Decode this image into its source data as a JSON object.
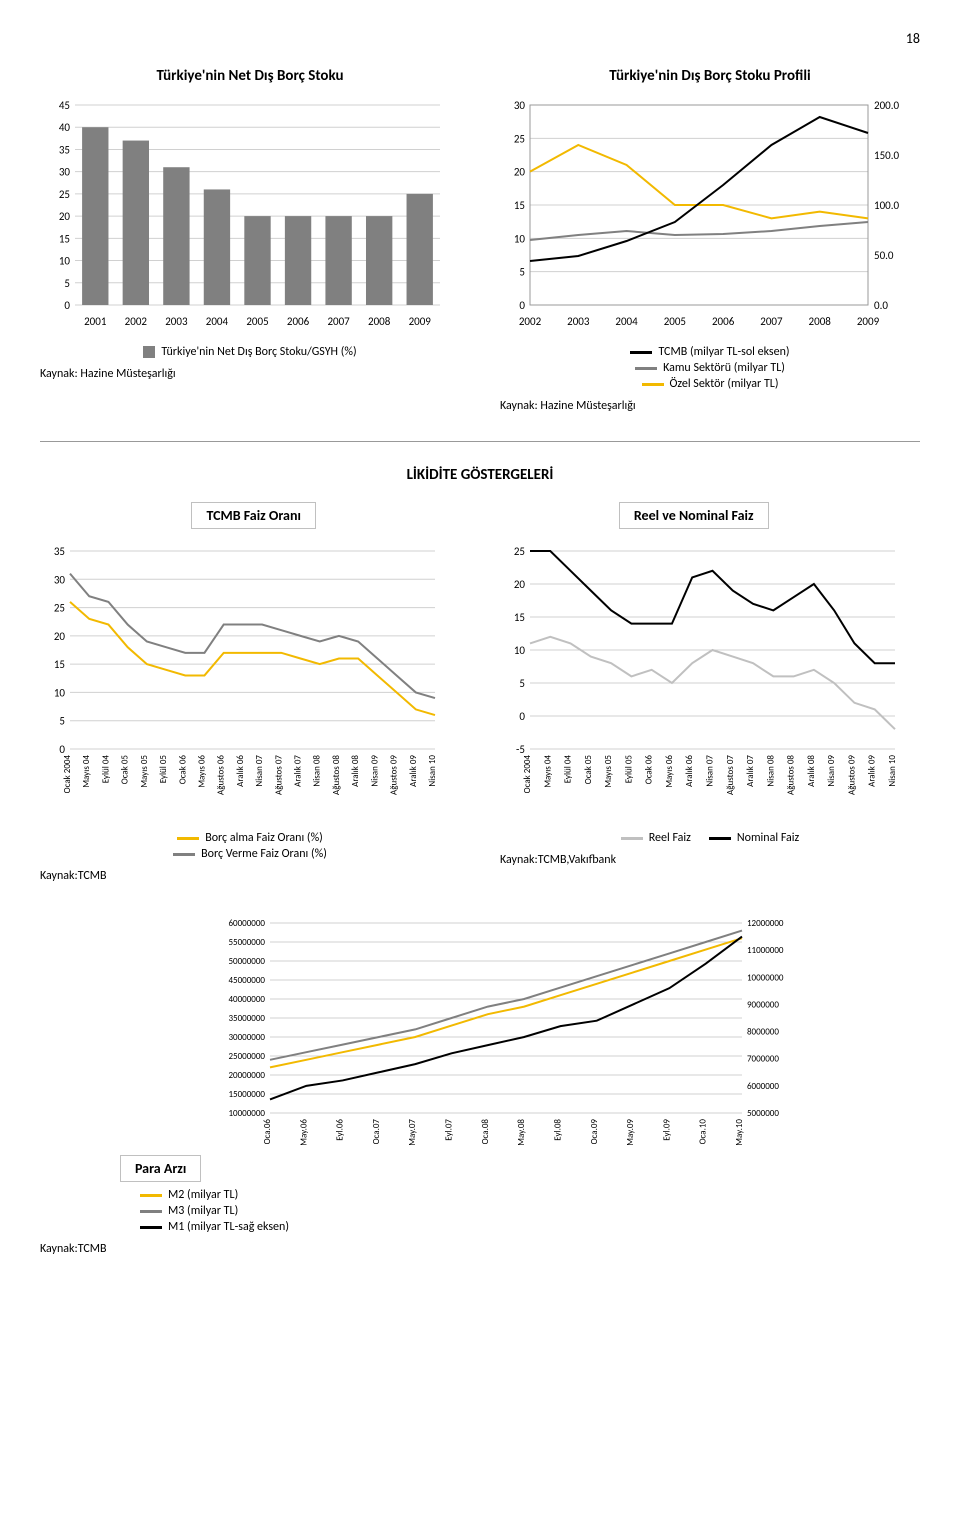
{
  "page_number": "18",
  "charts": {
    "left_top": {
      "type": "bar",
      "title": "Türkiye'nin Net Dış Borç Stoku",
      "categories": [
        "2001",
        "2002",
        "2003",
        "2004",
        "2005",
        "2006",
        "2007",
        "2008",
        "2009"
      ],
      "values": [
        40,
        37,
        31,
        26,
        20,
        20,
        20,
        20,
        25
      ],
      "ylim": [
        0,
        45
      ],
      "ytick_step": 5,
      "bar_color": "#808080",
      "grid_color": "#d0d0d0",
      "legend_label": "Türkiye'nin Net Dış Borç Stoku/GSYH (%)",
      "source": "Kaynak: Hazine Müsteşarlığı",
      "label_fontsize": 11
    },
    "right_top": {
      "type": "line-dual-axis",
      "title": "Türkiye'nin Dış Borç Stoku Profili",
      "categories": [
        "2002",
        "2003",
        "2004",
        "2005",
        "2006",
        "2007",
        "2008",
        "2009"
      ],
      "series": [
        {
          "name": "TCMB (milyar TL-sol eksen)",
          "axis": "left",
          "color": "#f2b900",
          "values": [
            20,
            24,
            21,
            15,
            15,
            13,
            14,
            13
          ]
        },
        {
          "name": "Kamu Sektörü (milyar TL)",
          "axis": "right",
          "color": "#808080",
          "values": [
            65,
            70,
            74,
            70,
            71,
            74,
            79,
            83
          ]
        },
        {
          "name": "Özel Sektör (milyar TL)",
          "axis": "right",
          "color": "#000000",
          "values": [
            44,
            49,
            64,
            83,
            120,
            160,
            188,
            172
          ]
        }
      ],
      "ylim_left": [
        0,
        30
      ],
      "ytick_left": 5,
      "ylim_right": [
        0,
        200
      ],
      "ytick_right": 50,
      "right_labels": [
        "0.0",
        "50.0",
        "100.0",
        "150.0",
        "200.0"
      ],
      "grid_color": "#d0d0d0",
      "source": "Kaynak: Hazine Müsteşarlığı",
      "label_fontsize": 11
    },
    "section_header": "LİKİDİTE GÖSTERGELERİ",
    "tcmb_faiz": {
      "type": "line",
      "title": "TCMB Faiz Oranı",
      "x_labels": [
        "Ocak 2004",
        "Mayıs 04",
        "Eylül 04",
        "Ocak 05",
        "Mayıs 05",
        "Eylül 05",
        "Ocak 06",
        "Mayıs 06",
        "Ağustos 06",
        "Aralık 06",
        "Nisan 07",
        "Ağustos 07",
        "Aralık 07",
        "Nisan 08",
        "Ağustos 08",
        "Aralık 08",
        "Nisan 09",
        "Ağustos 09",
        "Aralık 09",
        "Nisan 10"
      ],
      "series": [
        {
          "name": "Borç alma Faiz Oranı (%)",
          "color": "#f2b900",
          "values": [
            26,
            23,
            22,
            18,
            15,
            14,
            13,
            13,
            17,
            17,
            17,
            17,
            16,
            15,
            16,
            16,
            13,
            10,
            7,
            6
          ]
        },
        {
          "name": "Borç Verme Faiz Oranı (%)",
          "color": "#808080",
          "values": [
            31,
            27,
            26,
            22,
            19,
            18,
            17,
            17,
            22,
            22,
            22,
            21,
            20,
            19,
            20,
            19,
            16,
            13,
            10,
            9
          ]
        }
      ],
      "ylim": [
        0,
        35
      ],
      "ytick_step": 5,
      "grid_color": "#d0d0d0",
      "source": "Kaynak:TCMB",
      "label_fontsize": 9
    },
    "reel_nominal": {
      "type": "line",
      "title": "Reel ve Nominal Faiz",
      "x_labels": [
        "Ocak 2004",
        "Mayıs 04",
        "Eylül 04",
        "Ocak 05",
        "Mayıs 05",
        "Eylül 05",
        "Ocak 06",
        "Mayıs 06",
        "Aralık 06",
        "Nisan 07",
        "Ağustos 07",
        "Aralık 07",
        "Nisan 08",
        "Ağustos 08",
        "Aralık 08",
        "Nisan 09",
        "Ağustos 09",
        "Aralık 09",
        "Nisan 10"
      ],
      "series": [
        {
          "name": "Reel Faiz",
          "color": "#c0c0c0",
          "values": [
            11,
            12,
            11,
            9,
            8,
            6,
            7,
            5,
            8,
            10,
            9,
            8,
            6,
            6,
            7,
            5,
            2,
            1,
            -2
          ]
        },
        {
          "name": "Nominal Faiz",
          "color": "#000000",
          "values": [
            25,
            25,
            22,
            19,
            16,
            14,
            14,
            14,
            21,
            22,
            19,
            17,
            16,
            18,
            20,
            16,
            11,
            8,
            8
          ]
        }
      ],
      "ylim": [
        -5,
        25
      ],
      "ytick_step": 5,
      "grid_color": "#d0d0d0",
      "source": "Kaynak:TCMB,Vakıfbank",
      "label_fontsize": 9
    },
    "para_arzi": {
      "type": "line-dual-axis",
      "title": "Para Arzı",
      "x_labels": [
        "Oca.06",
        "May.06",
        "Eyl.06",
        "Oca.07",
        "May.07",
        "Eyl.07",
        "Oca.08",
        "May.08",
        "Eyl.08",
        "Oca.09",
        "May.09",
        "Eyl.09",
        "Oca.10",
        "May.10"
      ],
      "series": [
        {
          "name": "M2 (milyar TL)",
          "axis": "left",
          "color": "#f2b900",
          "values": [
            22000000,
            24000000,
            26000000,
            28000000,
            30000000,
            33000000,
            36000000,
            38000000,
            41000000,
            44000000,
            47000000,
            50000000,
            53000000,
            56000000
          ]
        },
        {
          "name": "M3 (milyar TL)",
          "axis": "left",
          "color": "#808080",
          "values": [
            24000000,
            26000000,
            28000000,
            30000000,
            32000000,
            35000000,
            38000000,
            40000000,
            43000000,
            46000000,
            49000000,
            52000000,
            55000000,
            58000000
          ]
        },
        {
          "name": "M1 (milyar TL-sağ eksen)",
          "axis": "right",
          "color": "#000000",
          "values": [
            5500000,
            6000000,
            6200000,
            6500000,
            6800000,
            7200000,
            7500000,
            7800000,
            8200000,
            8400000,
            9000000,
            9600000,
            10500000,
            11500000
          ]
        }
      ],
      "ylim_left": [
        10000000,
        60000000
      ],
      "ytick_left": 5000000,
      "ylim_right": [
        5000000,
        12000000
      ],
      "ytick_right": 1000000,
      "grid_color": "#d0d0d0",
      "source": "Kaynak:TCMB",
      "label_fontsize": 9
    }
  }
}
